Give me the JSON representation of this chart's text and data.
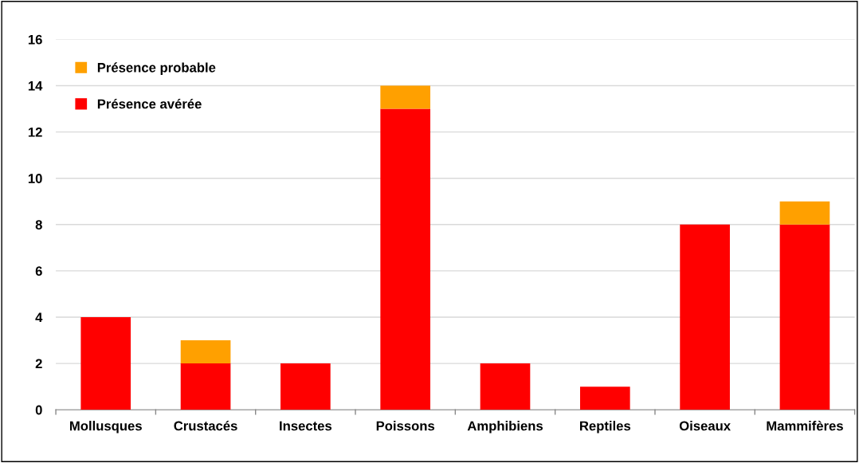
{
  "chart_data": {
    "type": "bar",
    "stacked": true,
    "categories": [
      "Mollusques",
      "Crustacés",
      "Insectes",
      "Poissons",
      "Amphibiens",
      "Reptiles",
      "Oiseaux",
      "Mammifères"
    ],
    "series": [
      {
        "name": "Présence avérée",
        "color": "#ff0000",
        "values": [
          4,
          2,
          2,
          13,
          2,
          1,
          8,
          8
        ]
      },
      {
        "name": "Présence probable",
        "color": "#ffa000",
        "values": [
          0,
          1,
          0,
          1,
          0,
          0,
          0,
          1
        ]
      }
    ],
    "ylim": [
      0,
      16
    ],
    "yticks": [
      0,
      2,
      4,
      6,
      8,
      10,
      12,
      14,
      16
    ],
    "grid": "y",
    "legend": "top left"
  }
}
